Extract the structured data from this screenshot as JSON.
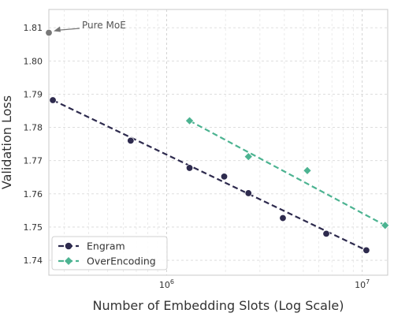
{
  "chart_data": {
    "type": "scatter",
    "xlabel": "Number of Embedding Slots (Log Scale)",
    "ylabel": "Validation Loss",
    "x_scale": "log",
    "xlim": [
      250000,
      13500000
    ],
    "ylim": [
      1.7355,
      1.8155
    ],
    "grid": true,
    "legend_position": "lower-left",
    "x_ticks": [
      {
        "value": 1000000,
        "base": "10",
        "exp": "6"
      },
      {
        "value": 10000000,
        "base": "10",
        "exp": "7"
      }
    ],
    "y_ticks": [
      {
        "value": 1.74,
        "label": "1.74"
      },
      {
        "value": 1.75,
        "label": "1.75"
      },
      {
        "value": 1.76,
        "label": "1.76"
      },
      {
        "value": 1.77,
        "label": "1.77"
      },
      {
        "value": 1.78,
        "label": "1.78"
      },
      {
        "value": 1.79,
        "label": "1.79"
      },
      {
        "value": 1.8,
        "label": "1.80"
      },
      {
        "value": 1.81,
        "label": "1.81"
      }
    ],
    "series": [
      {
        "name": "Engram",
        "marker": "circle",
        "color": "#2e2b4e",
        "x": [
          262000,
          655000,
          1310000,
          1970000,
          2620000,
          3930000,
          6550000,
          10500000
        ],
        "y": [
          1.7882,
          1.776,
          1.7678,
          1.7652,
          1.7602,
          1.7527,
          1.748,
          1.743
        ],
        "fit": {
          "x": [
            262000,
            10500000
          ],
          "y": [
            1.7882,
            1.743
          ]
        }
      },
      {
        "name": "OverEncoding",
        "marker": "diamond",
        "color": "#4cb391",
        "x": [
          1310000,
          2620000,
          5240000,
          13100000
        ],
        "y": [
          1.782,
          1.7712,
          1.767,
          1.7505
        ],
        "fit": {
          "x": [
            1310000,
            13100000
          ],
          "y": [
            1.782,
            1.7505
          ]
        }
      }
    ],
    "reference": {
      "label": "Pure MoE",
      "color": "#777777",
      "x": 250000,
      "y": 1.8085
    }
  }
}
